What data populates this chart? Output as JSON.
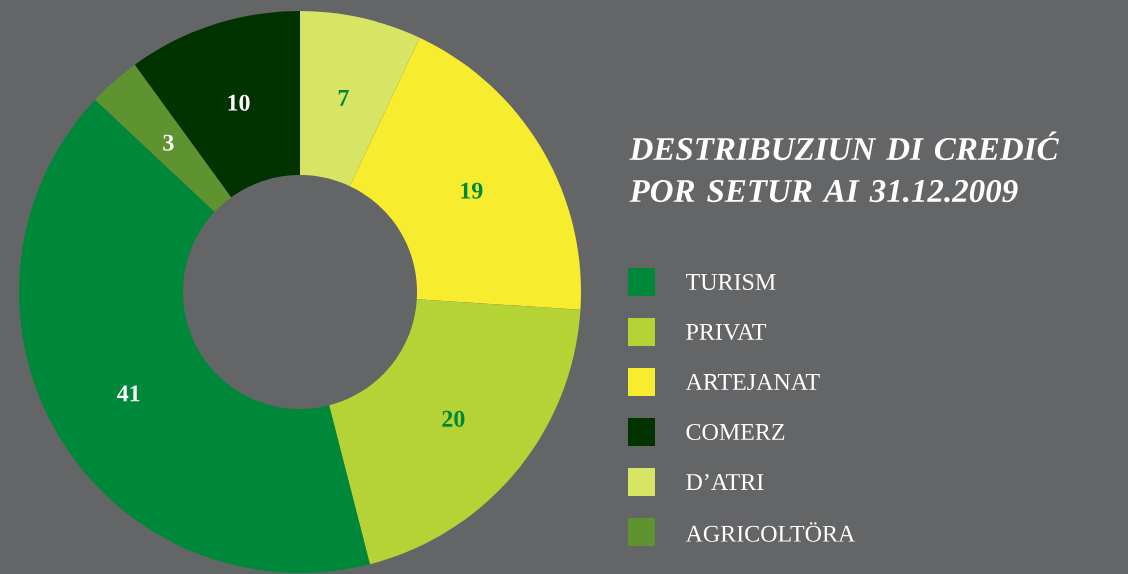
{
  "chart_data": {
    "type": "donut",
    "title": "DESTRIBUZIUN DI CREDIĆ POR SETUR AI 31.12.2009",
    "categories": [
      "TURISM",
      "PRIVAT",
      "ARTEJANAT",
      "COMERZ",
      "D’ATRI",
      "AGRICOLTÖRA"
    ],
    "values": [
      41,
      20,
      19,
      10,
      7,
      3
    ],
    "colors": [
      "#00883a",
      "#b5d334",
      "#f8ec2f",
      "#003300",
      "#d8e464",
      "#5e9330"
    ],
    "data_labels": true,
    "legend": "right"
  }
}
